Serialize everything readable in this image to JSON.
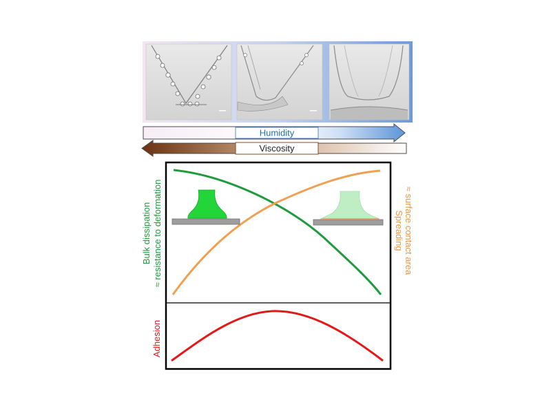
{
  "arrows": {
    "humidity": {
      "label": "Humidity",
      "color": "#1f6fb5"
    },
    "viscosity": {
      "label": "Viscosity",
      "color": "#7a3b12"
    }
  },
  "axes": {
    "left_upper": {
      "line1": "Bulk dissipation",
      "line2": "≈ resistance to deformation",
      "color": "#1e9b3c"
    },
    "right_upper": {
      "line1": "Spreading",
      "line2": "≈ surface contact area",
      "color": "#f0963c"
    },
    "left_lower": {
      "label": "Adhesion",
      "color": "#e01b1b"
    }
  },
  "colors": {
    "green_curve": "#1e9b3c",
    "orange_curve": "#f0a050",
    "red_curve": "#e41818",
    "frame": "#000000"
  },
  "photos": [
    {
      "name": "low-humidity-droplets-photo"
    },
    {
      "name": "mid-humidity-droplets-photo"
    },
    {
      "name": "high-humidity-droplets-photo"
    }
  ]
}
